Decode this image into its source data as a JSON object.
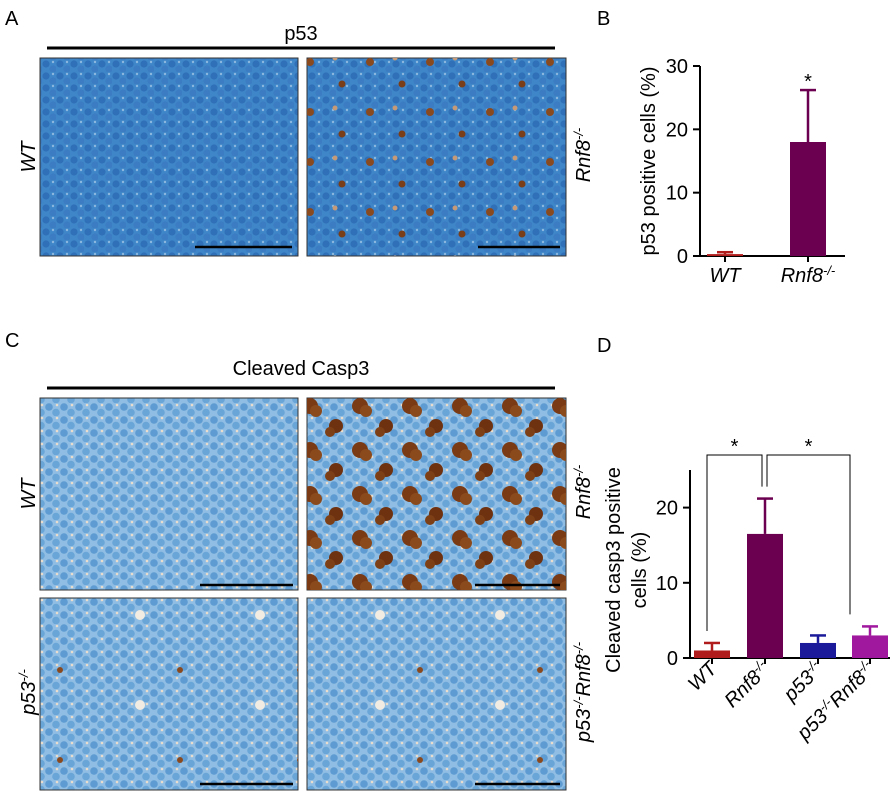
{
  "panels": {
    "a": {
      "letter": "A",
      "title": "p53",
      "rows": [
        [
          "WT"
        ],
        [
          "Rnf8",
          "-/-"
        ]
      ]
    },
    "b": {
      "letter": "B"
    },
    "c": {
      "letter": "C",
      "title": "Cleaved Casp3",
      "rows": [
        [
          "WT"
        ],
        [
          "Rnf8",
          "-/-"
        ],
        [
          "p53",
          "-/-"
        ],
        [
          "p53",
          "-/-",
          "Rnf8",
          "-/-"
        ]
      ]
    },
    "d": {
      "letter": "D"
    }
  },
  "chart_data": [
    {
      "type": "bar",
      "y_label": [
        "p53 positive cells (%)"
      ],
      "categories": [
        [
          "WT"
        ],
        [
          "Rnf8",
          "-/-"
        ]
      ],
      "values": [
        0.3,
        18
      ],
      "errors": [
        0.3,
        8.2
      ],
      "colors": [
        "#b01c1c",
        "#6b0050"
      ],
      "ylim": [
        0,
        30
      ],
      "yticks": [
        0,
        10,
        20,
        30
      ],
      "annotations": [
        {
          "text": "*",
          "category": 1
        }
      ]
    },
    {
      "type": "bar",
      "y_label": [
        "Cleaved casp3 positive",
        "cells (%)"
      ],
      "categories": [
        [
          "WT"
        ],
        [
          "Rnf8",
          "-/-"
        ],
        [
          "p53",
          "-/-"
        ],
        [
          "p53",
          "-/-",
          "Rnf8",
          "-/-"
        ]
      ],
      "values": [
        1.0,
        16.5,
        2.0,
        3.0
      ],
      "errors": [
        1.0,
        4.7,
        1.0,
        1.2
      ],
      "colors": [
        "#b01c1c",
        "#6b0050",
        "#1a1a9a",
        "#a0189e"
      ],
      "ylim": [
        0,
        25
      ],
      "yticks": [
        0,
        10,
        20
      ],
      "brackets": [
        {
          "text": "*",
          "from": 0,
          "to": 1
        },
        {
          "text": "*",
          "from": 1,
          "to": 3
        }
      ]
    }
  ]
}
